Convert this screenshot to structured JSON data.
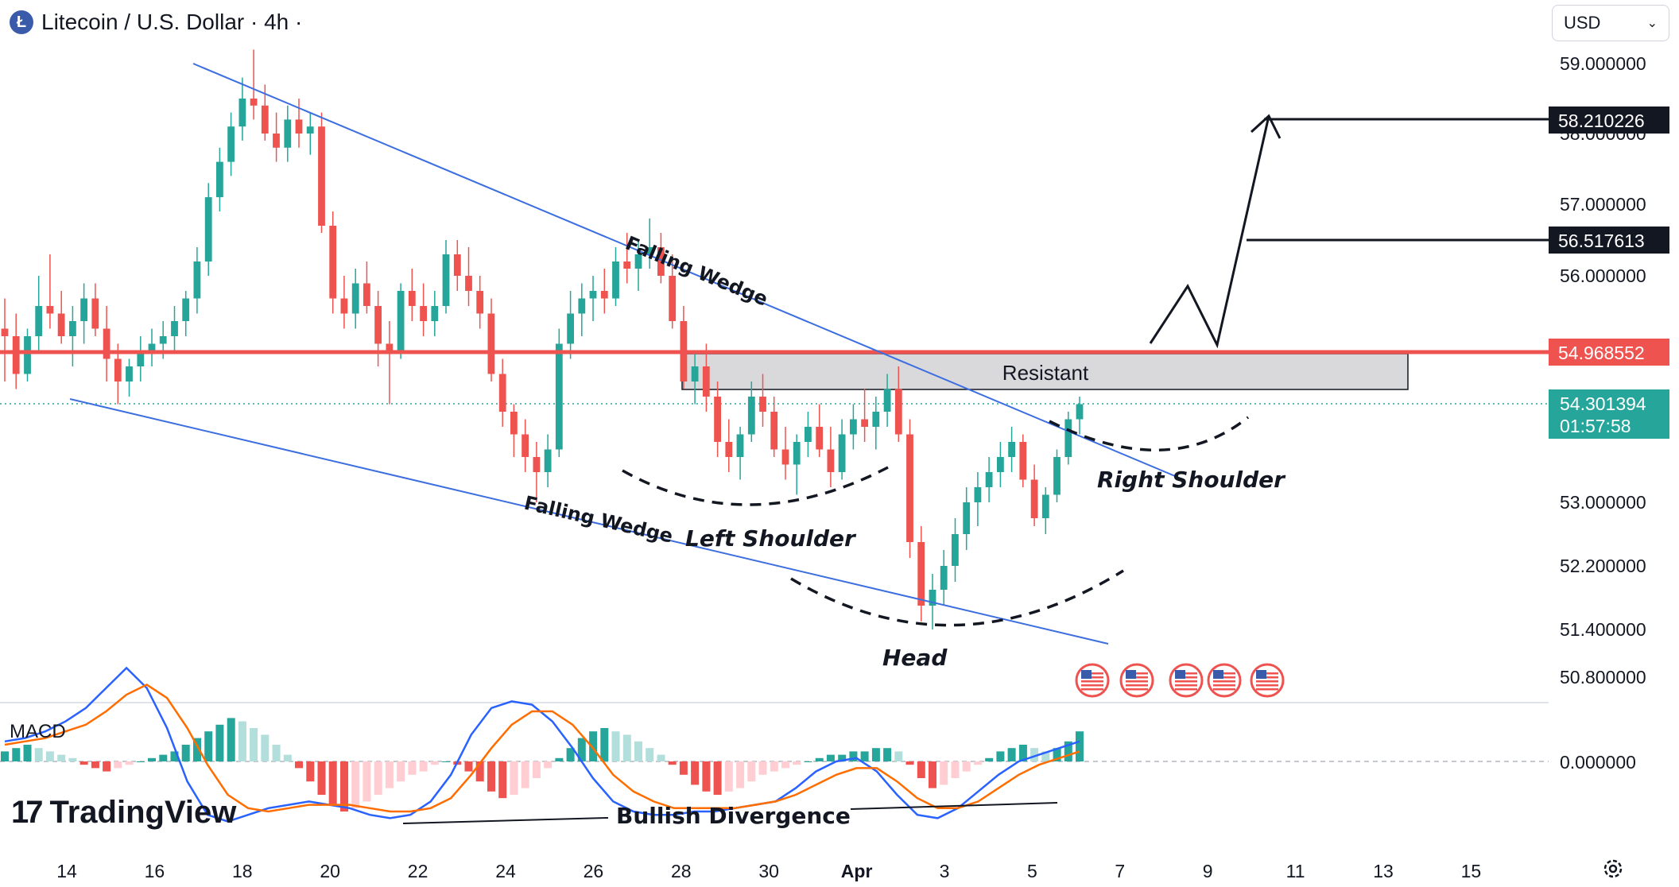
{
  "header": {
    "title": "Litecoin / U.S. Dollar · 4h ·",
    "logo_letter": "Ł"
  },
  "currency_select": {
    "value": "USD"
  },
  "branding": {
    "name": "TradingView"
  },
  "colors": {
    "up": "#26a69a",
    "down": "#ef5350",
    "resistance": "#ef5350",
    "wedge": "#3c6ee0",
    "last_price": "#26a69a"
  },
  "chart_data": {
    "type": "candlestick",
    "price_axis": {
      "ticks": [
        59.0,
        58.0,
        57.0,
        56.0,
        53.0,
        52.2,
        51.4,
        50.8
      ],
      "tick_labels": [
        "59.000000",
        "58.000000",
        "57.000000",
        "56.000000",
        "53.000000",
        "52.200000",
        "51.400000",
        "50.800000"
      ]
    },
    "time_axis": {
      "ticks": [
        "14",
        "16",
        "18",
        "20",
        "22",
        "24",
        "26",
        "28",
        "30",
        "Apr",
        "3",
        "5",
        "7",
        "9",
        "11",
        "13",
        "15"
      ]
    },
    "price_labels": [
      {
        "value": 58.210226,
        "text": "58.210226",
        "style": "dark"
      },
      {
        "value": 56.517613,
        "text": "56.517613",
        "style": "dark"
      },
      {
        "value": 54.968552,
        "text": "54.968552",
        "style": "red"
      },
      {
        "value": 54.301394,
        "text": "54.301394",
        "countdown": "01:57:58",
        "style": "green"
      }
    ],
    "resistance_level": 54.968552,
    "resistance_zone": {
      "from": 54.5,
      "to": 54.97,
      "label": "Resistant"
    },
    "last_price": 54.301394,
    "annotations": [
      "Falling Wedge",
      "Falling Wedge",
      "Left Shoulder",
      "Head",
      "Right Shoulder",
      "Bullish Divergence"
    ],
    "projected_path": [
      54.95,
      55.9,
      54.95,
      58.21
    ],
    "candles_approx": [
      [
        55.3,
        55.7,
        54.6,
        55.2
      ],
      [
        55.2,
        55.5,
        54.5,
        54.7
      ],
      [
        54.7,
        55.3,
        54.6,
        55.2
      ],
      [
        55.2,
        56.0,
        55.0,
        55.6
      ],
      [
        55.6,
        56.3,
        55.3,
        55.5
      ],
      [
        55.5,
        55.8,
        55.1,
        55.2
      ],
      [
        55.2,
        55.6,
        54.8,
        55.4
      ],
      [
        55.4,
        55.9,
        55.1,
        55.7
      ],
      [
        55.7,
        55.9,
        55.2,
        55.3
      ],
      [
        55.3,
        55.6,
        54.6,
        54.9
      ],
      [
        54.9,
        55.1,
        54.3,
        54.6
      ],
      [
        54.6,
        54.9,
        54.4,
        54.8
      ],
      [
        54.8,
        55.2,
        54.6,
        55.0
      ],
      [
        55.0,
        55.3,
        54.8,
        55.1
      ],
      [
        55.1,
        55.4,
        54.9,
        55.2
      ],
      [
        55.2,
        55.6,
        55.0,
        55.4
      ],
      [
        55.4,
        55.8,
        55.2,
        55.7
      ],
      [
        55.7,
        56.4,
        55.5,
        56.2
      ],
      [
        56.2,
        57.3,
        56.0,
        57.1
      ],
      [
        57.1,
        57.8,
        56.9,
        57.6
      ],
      [
        57.6,
        58.3,
        57.4,
        58.1
      ],
      [
        58.1,
        58.8,
        57.9,
        58.5
      ],
      [
        58.5,
        59.2,
        58.2,
        58.4
      ],
      [
        58.4,
        58.7,
        57.9,
        58.0
      ],
      [
        58.0,
        58.3,
        57.6,
        57.8
      ],
      [
        57.8,
        58.4,
        57.6,
        58.2
      ],
      [
        58.2,
        58.5,
        57.8,
        58.0
      ],
      [
        58.0,
        58.3,
        57.7,
        58.1
      ],
      [
        58.1,
        58.3,
        56.6,
        56.7
      ],
      [
        56.7,
        56.9,
        55.5,
        55.7
      ],
      [
        55.7,
        56.0,
        55.3,
        55.5
      ],
      [
        55.5,
        56.1,
        55.3,
        55.9
      ],
      [
        55.9,
        56.2,
        55.5,
        55.6
      ],
      [
        55.6,
        55.8,
        54.8,
        55.1
      ],
      [
        55.1,
        55.4,
        54.3,
        55.0
      ],
      [
        55.0,
        55.9,
        54.9,
        55.8
      ],
      [
        55.8,
        56.1,
        55.4,
        55.6
      ],
      [
        55.6,
        55.9,
        55.2,
        55.4
      ],
      [
        55.4,
        55.8,
        55.2,
        55.6
      ],
      [
        55.6,
        56.5,
        55.5,
        56.3
      ],
      [
        56.3,
        56.5,
        55.8,
        56.0
      ],
      [
        56.0,
        56.4,
        55.6,
        55.8
      ],
      [
        55.8,
        56.0,
        55.3,
        55.5
      ],
      [
        55.5,
        55.7,
        54.6,
        54.7
      ],
      [
        54.7,
        54.9,
        54.0,
        54.2
      ],
      [
        54.2,
        54.3,
        53.6,
        53.9
      ],
      [
        53.9,
        54.1,
        53.4,
        53.6
      ],
      [
        53.6,
        53.8,
        53.0,
        53.4
      ],
      [
        53.4,
        53.9,
        53.2,
        53.7
      ],
      [
        53.7,
        55.3,
        53.6,
        55.1
      ],
      [
        55.1,
        55.8,
        54.9,
        55.5
      ],
      [
        55.5,
        55.9,
        55.2,
        55.7
      ],
      [
        55.7,
        56.0,
        55.4,
        55.8
      ],
      [
        55.8,
        56.1,
        55.5,
        55.7
      ],
      [
        55.7,
        56.4,
        55.6,
        56.2
      ],
      [
        56.2,
        56.6,
        55.9,
        56.1
      ],
      [
        56.1,
        56.5,
        55.8,
        56.3
      ],
      [
        56.3,
        56.8,
        56.1,
        56.4
      ],
      [
        56.4,
        56.6,
        55.9,
        56.0
      ],
      [
        56.0,
        56.3,
        55.3,
        55.4
      ],
      [
        55.4,
        55.6,
        54.5,
        54.6
      ],
      [
        54.6,
        55.0,
        54.3,
        54.8
      ],
      [
        54.8,
        55.1,
        54.2,
        54.4
      ],
      [
        54.4,
        54.6,
        53.6,
        53.8
      ],
      [
        53.8,
        54.1,
        53.4,
        53.6
      ],
      [
        53.6,
        54.0,
        53.3,
        53.9
      ],
      [
        53.9,
        54.6,
        53.8,
        54.4
      ],
      [
        54.4,
        54.7,
        54.0,
        54.2
      ],
      [
        54.2,
        54.4,
        53.6,
        53.7
      ],
      [
        53.7,
        54.0,
        53.3,
        53.5
      ],
      [
        53.5,
        53.9,
        53.1,
        53.8
      ],
      [
        53.8,
        54.2,
        53.6,
        54.0
      ],
      [
        54.0,
        54.3,
        53.6,
        53.7
      ],
      [
        53.7,
        54.0,
        53.2,
        53.4
      ],
      [
        53.4,
        54.1,
        53.3,
        53.9
      ],
      [
        53.9,
        54.3,
        53.7,
        54.1
      ],
      [
        54.1,
        54.5,
        53.8,
        54.0
      ],
      [
        54.0,
        54.4,
        53.7,
        54.2
      ],
      [
        54.2,
        54.7,
        54.0,
        54.5
      ],
      [
        54.5,
        54.8,
        53.8,
        53.9
      ],
      [
        53.9,
        54.1,
        52.3,
        52.5
      ],
      [
        52.5,
        52.7,
        51.5,
        51.7
      ],
      [
        51.7,
        52.1,
        51.4,
        51.9
      ],
      [
        51.9,
        52.4,
        51.7,
        52.2
      ],
      [
        52.2,
        52.8,
        52.0,
        52.6
      ],
      [
        52.6,
        53.2,
        52.4,
        53.0
      ],
      [
        53.0,
        53.4,
        52.7,
        53.2
      ],
      [
        53.2,
        53.6,
        53.0,
        53.4
      ],
      [
        53.4,
        53.8,
        53.2,
        53.6
      ],
      [
        53.6,
        54.0,
        53.4,
        53.8
      ],
      [
        53.8,
        53.9,
        53.2,
        53.3
      ],
      [
        53.3,
        53.5,
        52.7,
        52.8
      ],
      [
        52.8,
        53.2,
        52.6,
        53.1
      ],
      [
        53.1,
        53.7,
        53.0,
        53.6
      ],
      [
        53.6,
        54.2,
        53.5,
        54.1
      ],
      [
        54.1,
        54.4,
        53.9,
        54.3
      ]
    ],
    "macd": {
      "label": "MACD",
      "zero_label": "0.000000",
      "histogram_approx": [
        0.3,
        0.4,
        0.5,
        0.4,
        0.3,
        0.2,
        0.1,
        -0.1,
        -0.2,
        -0.3,
        -0.2,
        -0.1,
        0.0,
        0.1,
        0.2,
        0.3,
        0.5,
        0.7,
        0.9,
        1.1,
        1.3,
        1.2,
        1.0,
        0.8,
        0.5,
        0.2,
        -0.2,
        -0.6,
        -1.0,
        -1.3,
        -1.5,
        -1.4,
        -1.2,
        -1.0,
        -0.8,
        -0.6,
        -0.4,
        -0.3,
        -0.1,
        0.0,
        -0.1,
        -0.3,
        -0.6,
        -0.9,
        -1.1,
        -1.0,
        -0.8,
        -0.5,
        -0.2,
        0.1,
        0.4,
        0.7,
        0.9,
        1.0,
        0.9,
        0.8,
        0.6,
        0.4,
        0.2,
        -0.1,
        -0.4,
        -0.7,
        -0.9,
        -1.0,
        -0.9,
        -0.8,
        -0.6,
        -0.4,
        -0.3,
        -0.2,
        -0.1,
        0.0,
        0.1,
        0.2,
        0.2,
        0.3,
        0.3,
        0.4,
        0.4,
        0.3,
        -0.1,
        -0.5,
        -0.8,
        -0.7,
        -0.5,
        -0.3,
        -0.1,
        0.1,
        0.3,
        0.4,
        0.5,
        0.4,
        0.3,
        0.4,
        0.6,
        0.9
      ],
      "macd_line_approx": [
        0.6,
        0.7,
        0.9,
        1.2,
        1.6,
        2.2,
        2.8,
        2.2,
        1.0,
        -0.6,
        -1.6,
        -1.8,
        -1.6,
        -1.4,
        -1.3,
        -1.2,
        -1.3,
        -1.4,
        -1.6,
        -1.7,
        -1.6,
        -1.2,
        -0.4,
        0.8,
        1.6,
        1.8,
        1.7,
        1.2,
        0.4,
        -0.5,
        -1.2,
        -1.5,
        -1.6,
        -1.6,
        -1.5,
        -1.5,
        -1.4,
        -1.3,
        -1.2,
        -0.8,
        -0.3,
        0.0,
        0.1,
        -0.3,
        -1.0,
        -1.6,
        -1.7,
        -1.4,
        -0.9,
        -0.4,
        0.0,
        0.2,
        0.4,
        0.6
      ],
      "signal_line_approx": [
        0.5,
        0.6,
        0.7,
        0.9,
        1.1,
        1.5,
        2.0,
        2.3,
        1.9,
        1.0,
        -0.1,
        -1.0,
        -1.4,
        -1.5,
        -1.4,
        -1.3,
        -1.3,
        -1.3,
        -1.4,
        -1.5,
        -1.5,
        -1.4,
        -1.1,
        -0.4,
        0.4,
        1.1,
        1.5,
        1.5,
        1.1,
        0.4,
        -0.4,
        -0.9,
        -1.2,
        -1.4,
        -1.4,
        -1.4,
        -1.4,
        -1.3,
        -1.2,
        -1.0,
        -0.7,
        -0.4,
        -0.2,
        -0.2,
        -0.6,
        -1.1,
        -1.4,
        -1.4,
        -1.2,
        -0.8,
        -0.4,
        -0.1,
        0.1,
        0.3
      ]
    }
  }
}
